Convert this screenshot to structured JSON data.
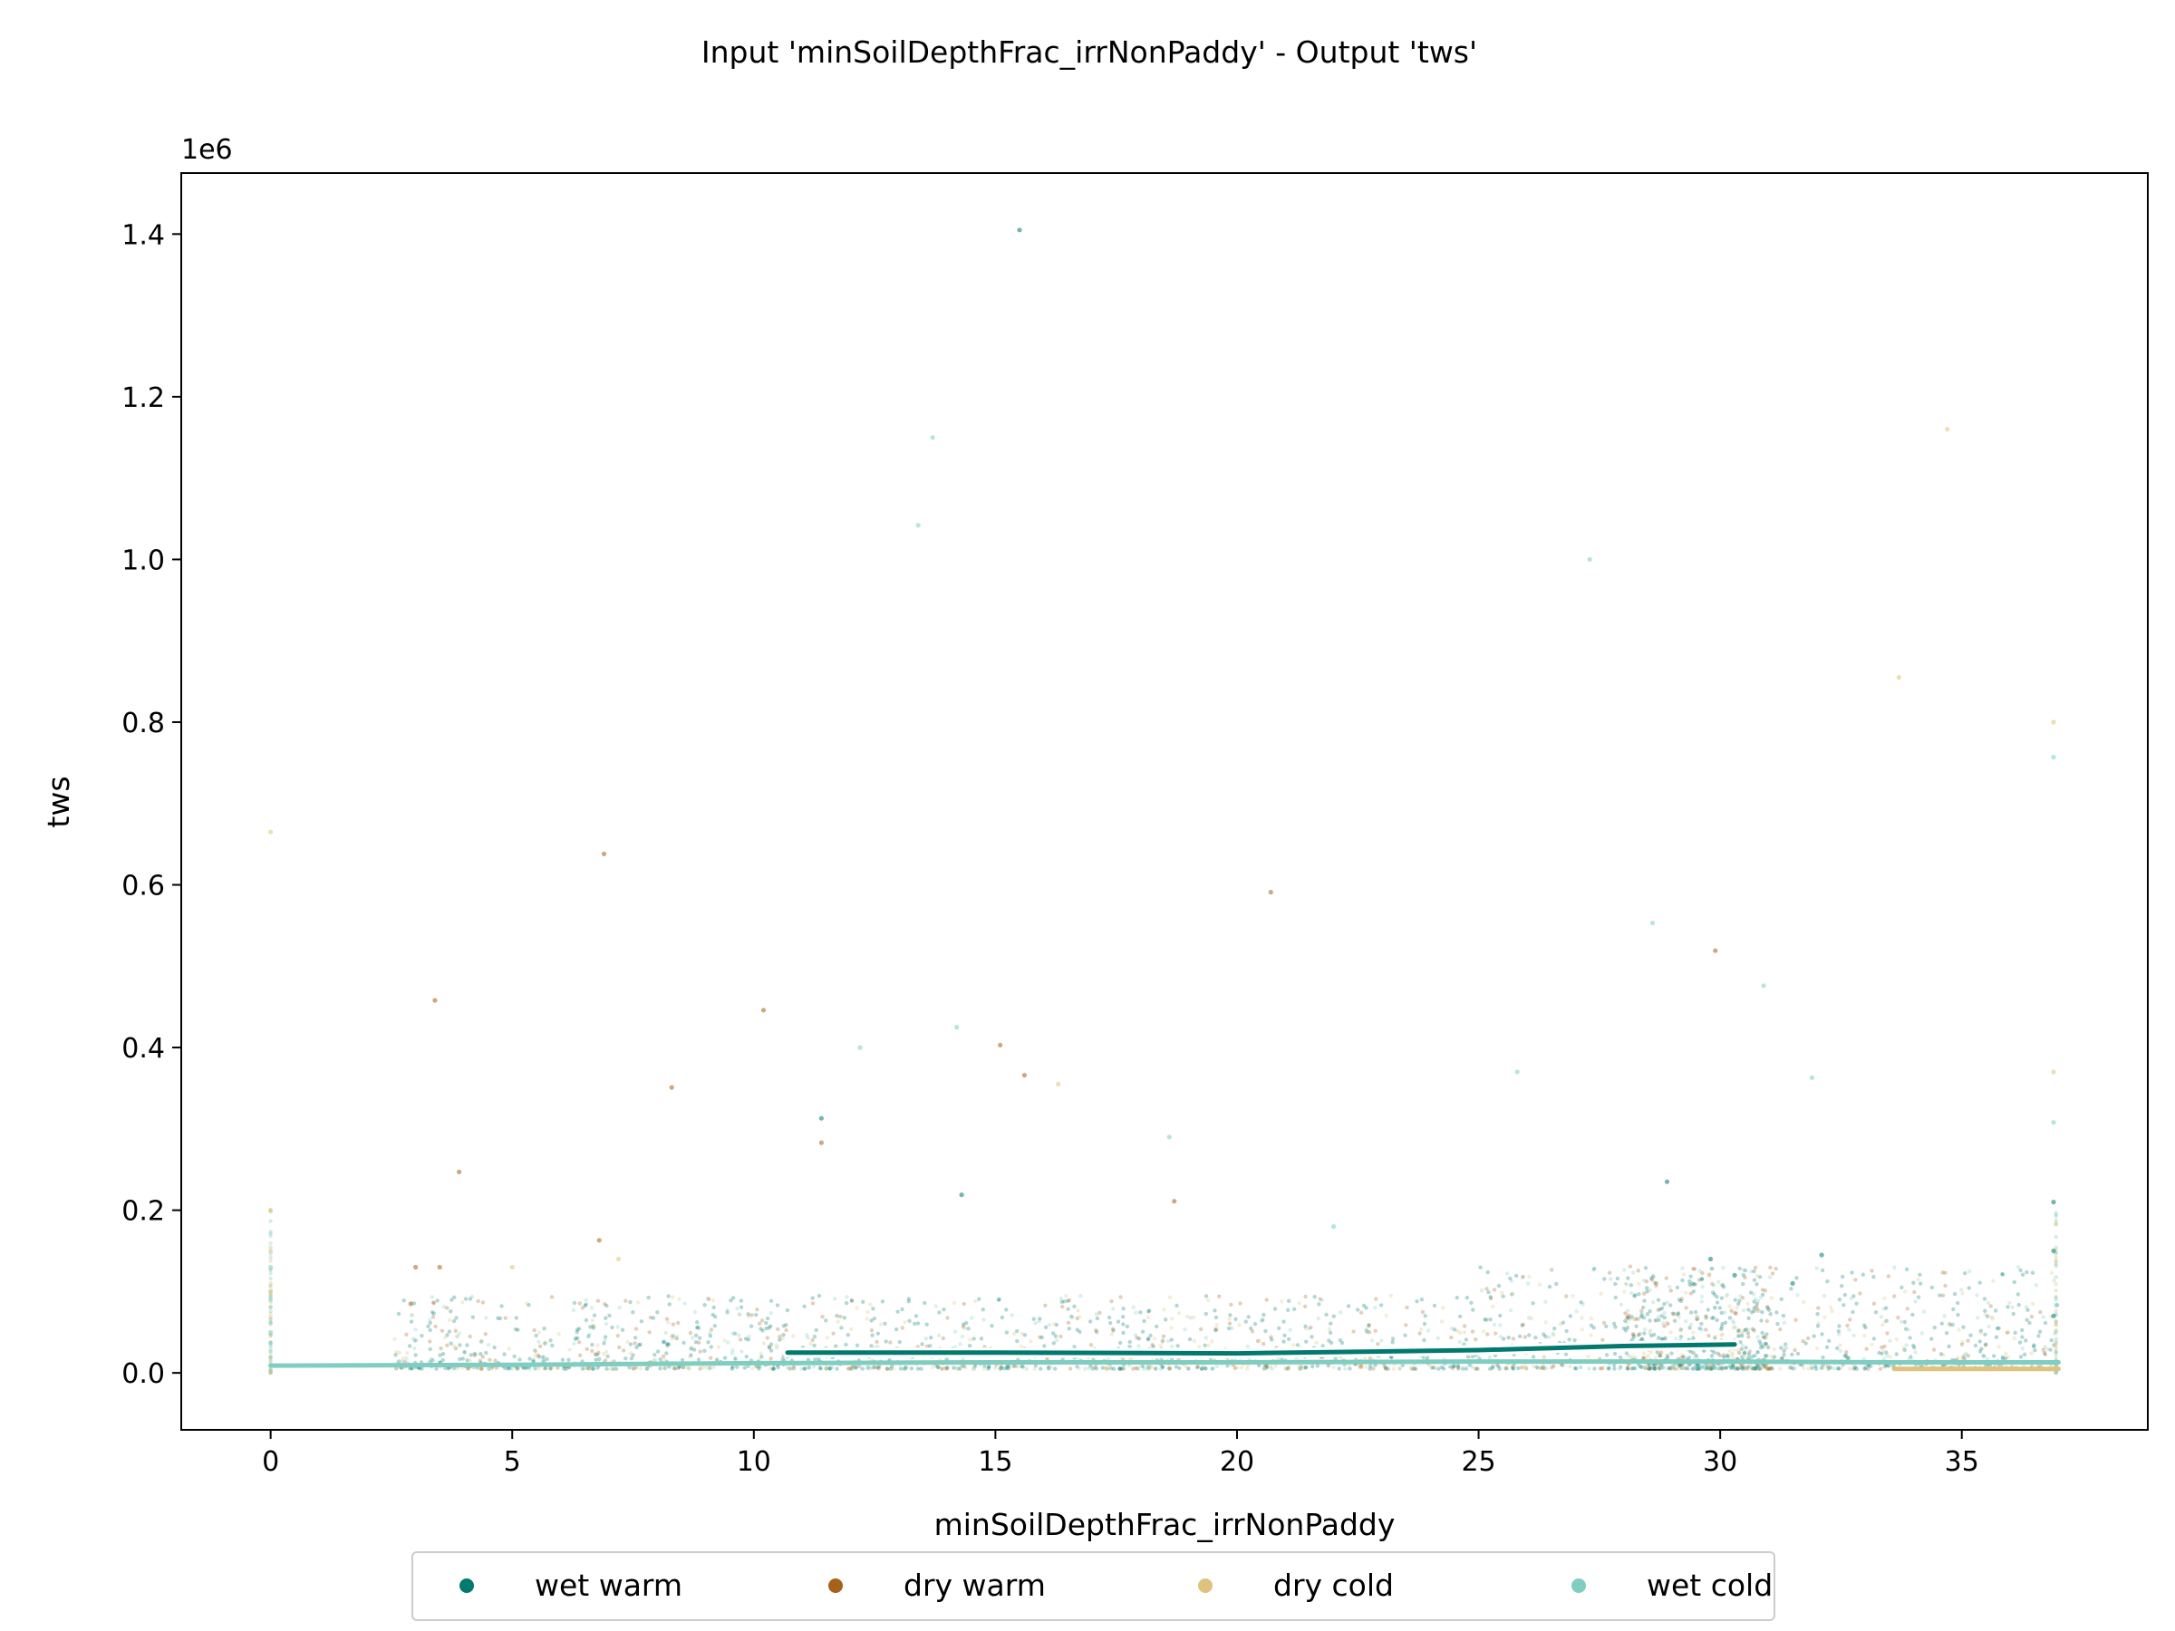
{
  "chart_data": {
    "type": "scatter",
    "title": "Input 'minSoilDepthFrac_irrNonPaddy' - Output 'tws'",
    "xlabel": "minSoilDepthFrac_irrNonPaddy",
    "ylabel": "tws",
    "y_offset_label": "1e6",
    "xlim": [
      -1.85,
      38.85
    ],
    "ylim": [
      -0.07,
      1.475
    ],
    "x_ticks": [
      0,
      5,
      10,
      15,
      20,
      25,
      30,
      35
    ],
    "y_ticks": [
      0.0,
      0.2,
      0.4,
      0.6,
      0.8,
      1.0,
      1.2,
      1.4
    ],
    "x_tick_labels": [
      "0",
      "5",
      "10",
      "15",
      "20",
      "25",
      "30",
      "35"
    ],
    "y_tick_labels": [
      "0.0",
      "0.2",
      "0.4",
      "0.6",
      "0.8",
      "1.0",
      "1.2",
      "1.4"
    ],
    "grid": false,
    "legend_position": "bottom-center",
    "series": [
      {
        "name": "wet warm",
        "color": "#01796f",
        "points": [
          [
            15.5,
            1.405
          ],
          [
            11.4,
            0.313
          ],
          [
            28.9,
            0.235
          ],
          [
            14.3,
            0.219
          ],
          [
            30.3,
            0.12
          ],
          [
            29.8,
            0.14
          ],
          [
            32.1,
            0.145
          ],
          [
            31.5,
            0.11
          ],
          [
            36.9,
            0.21
          ],
          [
            36.9,
            0.15
          ],
          [
            36.9,
            0.07
          ]
        ],
        "trend": {
          "x": [
            10.7,
            15,
            20,
            25,
            28,
            30.3
          ],
          "y": [
            0.025,
            0.025,
            0.024,
            0.028,
            0.033,
            0.035
          ]
        }
      },
      {
        "name": "dry warm",
        "color": "#a6611a",
        "points": [
          [
            6.9,
            0.638
          ],
          [
            20.7,
            0.591
          ],
          [
            29.9,
            0.519
          ],
          [
            3.4,
            0.458
          ],
          [
            10.2,
            0.446
          ],
          [
            15.1,
            0.403
          ],
          [
            15.6,
            0.366
          ],
          [
            8.3,
            0.351
          ],
          [
            3.9,
            0.247
          ],
          [
            11.4,
            0.283
          ],
          [
            18.7,
            0.211
          ],
          [
            6.8,
            0.163
          ],
          [
            3.0,
            0.13
          ],
          [
            3.5,
            0.13
          ],
          [
            2.9,
            0.085
          ]
        ]
      },
      {
        "name": "dry cold",
        "color": "#dfc27d",
        "points": [
          [
            0.0,
            0.665
          ],
          [
            0.0,
            0.2
          ],
          [
            0.0,
            0.15
          ],
          [
            0.0,
            0.1
          ],
          [
            5.0,
            0.13
          ],
          [
            7.2,
            0.14
          ],
          [
            16.3,
            0.355
          ],
          [
            33.7,
            0.855
          ],
          [
            34.7,
            1.16
          ],
          [
            36.9,
            0.8
          ],
          [
            36.9,
            0.37
          ]
        ]
      },
      {
        "name": "wet cold",
        "color": "#80cdc1",
        "points": [
          [
            13.7,
            1.15
          ],
          [
            13.4,
            1.042
          ],
          [
            27.3,
            1.0
          ],
          [
            36.9,
            0.757
          ],
          [
            28.6,
            0.553
          ],
          [
            30.9,
            0.476
          ],
          [
            14.2,
            0.425
          ],
          [
            12.2,
            0.4
          ],
          [
            25.8,
            0.37
          ],
          [
            31.9,
            0.363
          ],
          [
            36.9,
            0.308
          ],
          [
            18.6,
            0.29
          ],
          [
            22.0,
            0.18
          ],
          [
            0.0,
            0.13
          ],
          [
            0.0,
            0.09
          ],
          [
            0.0,
            0.05
          ]
        ],
        "trend": {
          "x": [
            0,
            5,
            10,
            15,
            20,
            25,
            30,
            33.6,
            37
          ],
          "y": [
            0.009,
            0.01,
            0.012,
            0.013,
            0.013,
            0.014,
            0.014,
            0.013,
            0.013
          ]
        }
      }
    ],
    "dry_cold_trend": {
      "x": [
        33.6,
        37
      ],
      "y": [
        0.005,
        0.005
      ]
    }
  }
}
